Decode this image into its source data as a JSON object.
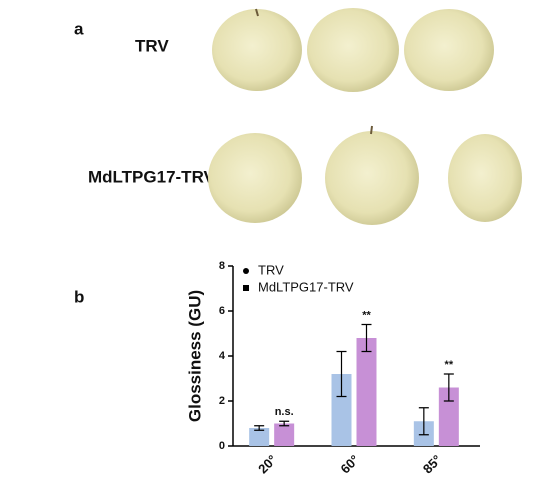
{
  "panel_labels": {
    "a": "a",
    "b": "b"
  },
  "row_labels": [
    "TRV",
    "MdLTPG17-TRV"
  ],
  "chart_data": {
    "type": "bar",
    "y_label": "Glossiness (GU)",
    "categories": [
      "20°",
      "60°",
      "85°"
    ],
    "series": [
      {
        "name": "TRV",
        "color": "#a9c3e6",
        "marker": "circle",
        "values": [
          0.8,
          3.2,
          1.1
        ],
        "errors": [
          0.1,
          1.0,
          0.6
        ]
      },
      {
        "name": "MdLTPG17-TRV",
        "color": "#c790d6",
        "marker": "square",
        "values": [
          1.0,
          4.8,
          2.6
        ],
        "errors": [
          0.1,
          0.6,
          0.6
        ],
        "significance": [
          "n.s.",
          "**",
          "**"
        ]
      }
    ],
    "ylim": [
      0,
      8
    ],
    "yticks": [
      0,
      2,
      4,
      6,
      8
    ],
    "legend": "upper left"
  }
}
